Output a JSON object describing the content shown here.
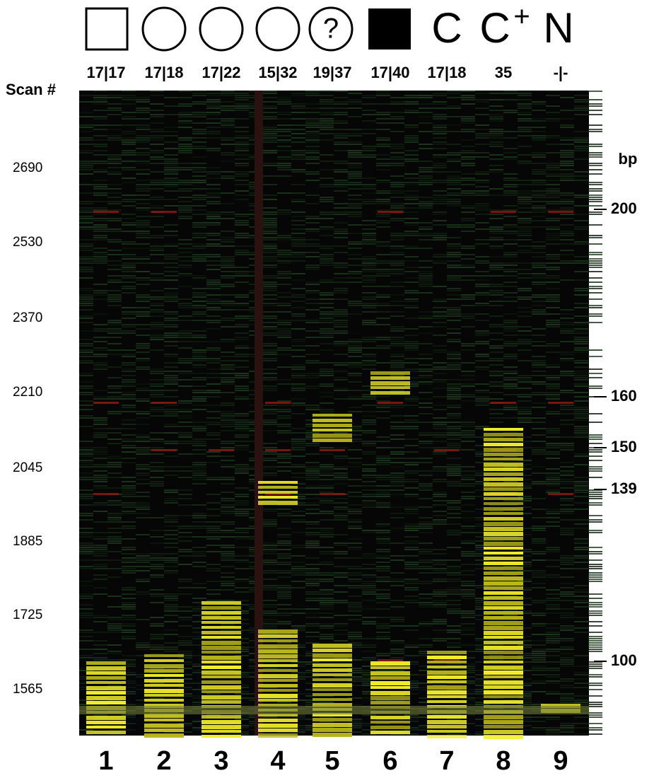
{
  "header": {
    "symbols": [
      "?",
      "C",
      "C",
      "+",
      "N"
    ]
  },
  "genotypes": [
    "17|17",
    "17|18",
    "17|22",
    "15|32",
    "19|37",
    "17|40",
    "17|18",
    "35",
    "-|-"
  ],
  "scan": {
    "label": "Scan #",
    "values": [
      "2690",
      "2530",
      "2370",
      "2210",
      "2045",
      "1885",
      "1725",
      "1565"
    ]
  },
  "bp": {
    "label": "bp",
    "values": [
      "200",
      "160",
      "150",
      "139",
      "100"
    ]
  },
  "lanes": [
    "1",
    "2",
    "3",
    "4",
    "5",
    "6",
    "7",
    "8",
    "9"
  ]
}
